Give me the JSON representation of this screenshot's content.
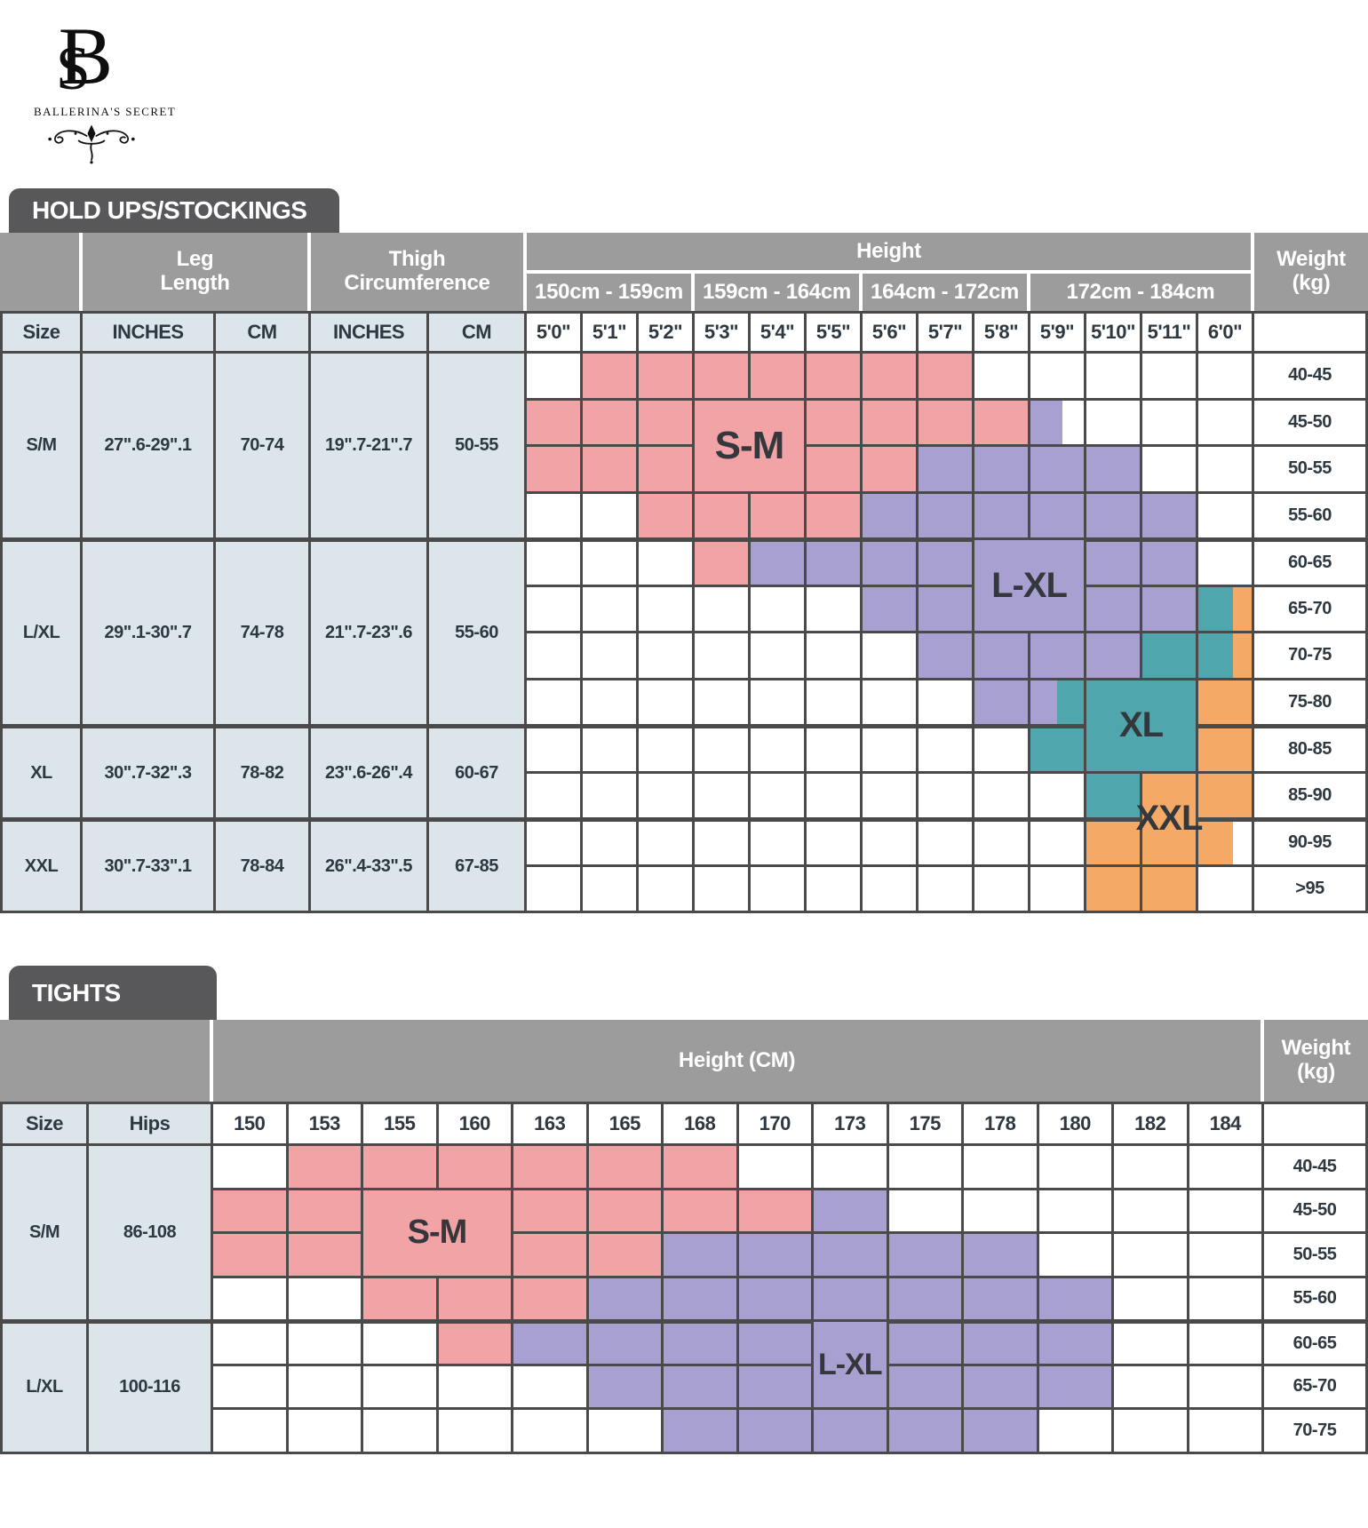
{
  "brand": {
    "monogram_s": "S",
    "monogram_b": "B",
    "name": "BALLERINA'S SECRET"
  },
  "colors": {
    "pink": "#F2A3A6",
    "purple": "#A9A0D2",
    "teal": "#4FA6AD",
    "orange": "#F5A967",
    "header_gray": "#9C9C9C",
    "tab_gray": "#58585A",
    "light_blue": "#DCE5EA",
    "grid_line": "#4A4A4A",
    "text_dark": "#2E3841"
  },
  "table1": {
    "tab": "HOLD UPS/STOCKINGS",
    "leg_header": "Leg\nLength",
    "thigh_header": "Thigh\nCircumference",
    "height_header": "Height",
    "weight_header": "Weight\n(kg)",
    "height_groups": [
      "150cm - 159cm",
      "159cm - 164cm",
      "164cm - 172cm",
      "172cm - 184cm"
    ],
    "height_group_spans": [
      3,
      3,
      3,
      4
    ],
    "columns": [
      "Size",
      "INCHES",
      "CM",
      "INCHES",
      "CM"
    ],
    "height_columns": [
      "5'0\"",
      "5'1\"",
      "5'2\"",
      "5'3\"",
      "5'4\"",
      "5'5\"",
      "5'6\"",
      "5'7\"",
      "5'8\"",
      "5'9\"",
      "5'10\"",
      "5'11\"",
      "6'0\""
    ],
    "sections": [
      {
        "size": "S/M",
        "leg_inches": "27\".6-29\".1",
        "leg_cm": "70-74",
        "thigh_inches": "19\".7-21\".7",
        "thigh_cm": "50-55",
        "rows": 4
      },
      {
        "size": "L/XL",
        "leg_inches": "29\".1-30\".7",
        "leg_cm": "74-78",
        "thigh_inches": "21\".7-23\".6",
        "thigh_cm": "55-60",
        "rows": 4
      },
      {
        "size": "XL",
        "leg_inches": "30\".7-32\".3",
        "leg_cm": "78-82",
        "thigh_inches": "23\".6-26\".4",
        "thigh_cm": "60-67",
        "rows": 2
      },
      {
        "size": "XXL",
        "leg_inches": "30\".7-33\".1",
        "leg_cm": "78-84",
        "thigh_inches": "26\".4-33\".5",
        "thigh_cm": "67-85",
        "rows": 2
      }
    ],
    "weights": [
      "40-45",
      "45-50",
      "50-55",
      "55-60",
      "60-65",
      "65-70",
      "70-75",
      "75-80",
      "80-85",
      "85-90",
      "90-95",
      ">95"
    ],
    "grid": [
      [
        "",
        "pk",
        "pk",
        "pk",
        "pk",
        "pk",
        "pk",
        "pk",
        "",
        "",
        "",
        "",
        ""
      ],
      [
        "pk",
        "pk",
        "pk",
        "pk",
        "pk",
        "pk",
        "pk",
        "pk",
        "pk",
        "pu60",
        "",
        "",
        ""
      ],
      [
        "pk",
        "pk",
        "pk",
        "pk",
        "pk",
        "pk",
        "pk",
        "pu",
        "pu",
        "pu",
        "pu",
        "",
        ""
      ],
      [
        "",
        "",
        "pk",
        "pk",
        "pk",
        "pk",
        "pu",
        "pu",
        "pu",
        "pu",
        "pu",
        "pu",
        ""
      ],
      [
        "",
        "",
        "",
        "pk",
        "pu",
        "pu",
        "pu",
        "pu",
        "pu",
        "pu",
        "pu",
        "pu",
        ""
      ],
      [
        "",
        "",
        "",
        "",
        "",
        "",
        "pu",
        "pu",
        "pu",
        "pu",
        "pu",
        "pu",
        "te/or"
      ],
      [
        "",
        "",
        "",
        "",
        "",
        "",
        "",
        "pu",
        "pu",
        "pu",
        "pu",
        "te",
        "te/or"
      ],
      [
        "",
        "",
        "",
        "",
        "",
        "",
        "",
        "",
        "pu",
        "pu/te",
        "te",
        "te",
        "or"
      ],
      [
        "",
        "",
        "",
        "",
        "",
        "",
        "",
        "",
        "",
        "te",
        "te",
        "te",
        "or"
      ],
      [
        "",
        "",
        "",
        "",
        "",
        "",
        "",
        "",
        "",
        "",
        "te",
        "or",
        "or"
      ],
      [
        "",
        "",
        "",
        "",
        "",
        "",
        "",
        "",
        "",
        "",
        "or",
        "or",
        "or65"
      ],
      [
        "",
        "",
        "",
        "",
        "",
        "",
        "",
        "",
        "",
        "",
        "or",
        "or",
        ""
      ]
    ],
    "labels": [
      {
        "text": "S-M",
        "col": 4,
        "colspan": 2,
        "row": 2,
        "rowspan": 2,
        "color": "pk",
        "font": 44
      },
      {
        "text": "L-XL",
        "col": 9,
        "colspan": 2,
        "row": 5,
        "rowspan": 2,
        "color": "pu",
        "font": 40
      },
      {
        "text": "XL",
        "col": 11,
        "colspan": 2,
        "row": 8,
        "rowspan": 2,
        "color": "te",
        "font": 40
      },
      {
        "text": "XXL",
        "col": 12,
        "colspan": 1,
        "row": 10,
        "rowspan": 2,
        "color": "or",
        "font": 40
      }
    ]
  },
  "table2": {
    "tab": "TIGHTS",
    "height_header": "Height (CM)",
    "weight_header": "Weight\n(kg)",
    "columns": [
      "Size",
      "Hips"
    ],
    "height_columns": [
      "150",
      "153",
      "155",
      "160",
      "163",
      "165",
      "168",
      "170",
      "173",
      "175",
      "178",
      "180",
      "182",
      "184"
    ],
    "sections": [
      {
        "size": "S/M",
        "hips": "86-108",
        "rows": 4
      },
      {
        "size": "L/XL",
        "hips": "100-116",
        "rows": 3
      }
    ],
    "weights": [
      "40-45",
      "45-50",
      "50-55",
      "55-60",
      "60-65",
      "65-70",
      "70-75"
    ],
    "grid": [
      [
        "",
        "pk",
        "pk",
        "pk",
        "pk",
        "pk",
        "pk",
        "",
        "",
        "",
        "",
        "",
        "",
        ""
      ],
      [
        "pk",
        "pk",
        "pk",
        "pk",
        "pk",
        "pk",
        "pk",
        "pk",
        "pu",
        "",
        "",
        "",
        "",
        ""
      ],
      [
        "pk",
        "pk",
        "pk",
        "pk",
        "pk",
        "pk",
        "pu",
        "pu",
        "pu",
        "pu",
        "pu",
        "",
        "",
        ""
      ],
      [
        "",
        "",
        "pk",
        "pk",
        "pk",
        "pu",
        "pu",
        "pu",
        "pu",
        "pu",
        "pu",
        "pu",
        "",
        ""
      ],
      [
        "",
        "",
        "",
        "pk",
        "pu",
        "pu",
        "pu",
        "pu",
        "pu",
        "pu",
        "pu",
        "pu",
        "",
        ""
      ],
      [
        "",
        "",
        "",
        "",
        "",
        "pu",
        "pu",
        "pu",
        "pu",
        "pu",
        "pu",
        "pu",
        "",
        ""
      ],
      [
        "",
        "",
        "",
        "",
        "",
        "",
        "pu",
        "pu",
        "pu",
        "pu",
        "pu",
        "",
        "",
        ""
      ]
    ],
    "labels": [
      {
        "text": "S-M",
        "col": 3,
        "colspan": 2,
        "row": 2,
        "rowspan": 2,
        "color": "pk",
        "font": 38
      },
      {
        "text": "L-XL",
        "col": 9,
        "colspan": 1,
        "row": 5,
        "rowspan": 2,
        "color": "pu",
        "font": 34
      }
    ]
  }
}
